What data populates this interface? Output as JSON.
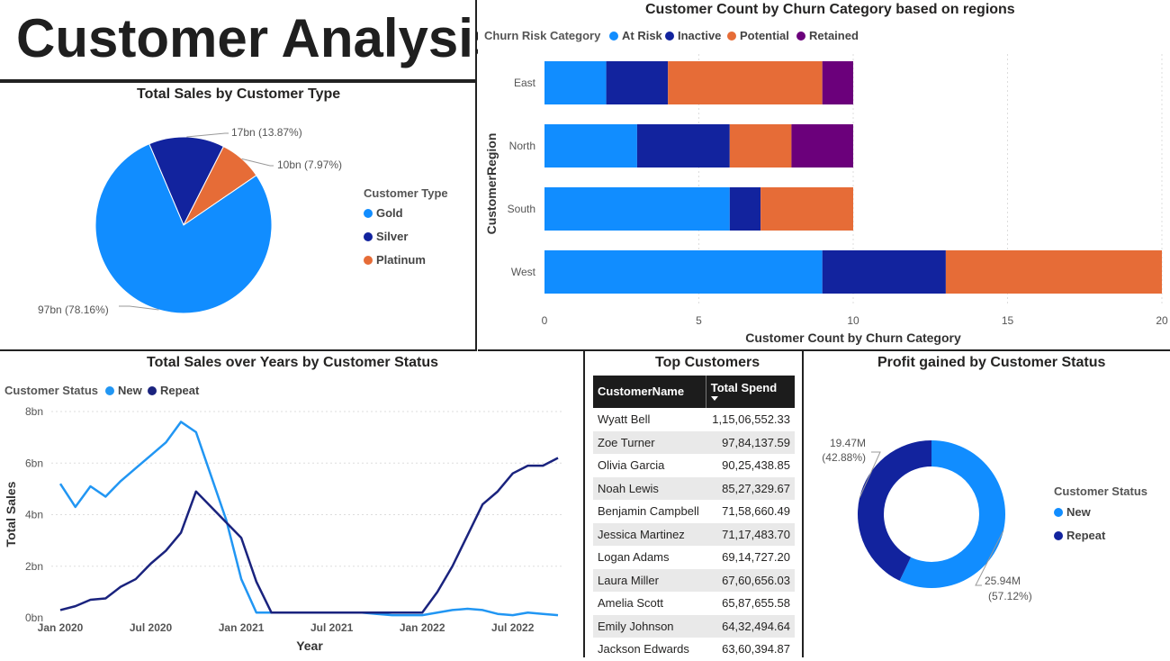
{
  "page_title": "Customer Analysis",
  "colors": {
    "gold": "#118DFF",
    "silver": "#12239E",
    "platinum": "#E66C37",
    "retained": "#6B007B",
    "new_line": "#2196F3",
    "repeat_line": "#1A237E"
  },
  "pie": {
    "title": "Total Sales by Customer Type",
    "legend_title": "Customer Type",
    "labels": [
      "97bn (78.16%)",
      "17bn (13.87%)",
      "10bn (7.97%)"
    ],
    "chart_data": {
      "type": "pie",
      "categories": [
        "Gold",
        "Silver",
        "Platinum"
      ],
      "values": [
        97,
        17,
        10
      ],
      "percent": [
        78.16,
        13.87,
        7.97
      ],
      "unit": "bn"
    }
  },
  "bar": {
    "title": "Customer Count by Churn Category based on regions",
    "legend_title": "Churn Risk Category",
    "xlabel": "Customer Count by Churn Category",
    "ylabel": "CustomerRegion",
    "ticks": [
      "0",
      "5",
      "10",
      "15",
      "20"
    ],
    "chart_data": {
      "type": "bar",
      "orientation": "horizontal",
      "stacked": true,
      "categories": [
        "East",
        "North",
        "South",
        "West"
      ],
      "series": [
        {
          "name": "At Risk",
          "values": [
            2,
            3,
            6,
            9
          ]
        },
        {
          "name": "Inactive",
          "values": [
            2,
            3,
            1,
            4
          ]
        },
        {
          "name": "Potential",
          "values": [
            5,
            2,
            3,
            7
          ]
        },
        {
          "name": "Retained",
          "values": [
            1,
            2,
            0,
            0
          ]
        }
      ],
      "xlim": [
        0,
        20
      ],
      "grid": true,
      "legend": "top-left"
    }
  },
  "line": {
    "title": "Total Sales over Years by Customer Status",
    "legend_title": "Customer Status",
    "xlabel": "Year",
    "ylabel": "Total Sales",
    "yticks": [
      "8bn",
      "6bn",
      "4bn",
      "2bn",
      "0bn"
    ],
    "xticks": [
      "Jan 2020",
      "Jul 2020",
      "Jan 2021",
      "Jul 2021",
      "Jan 2022",
      "Jul 2022"
    ],
    "chart_data": {
      "type": "line",
      "x": [
        "2020-01",
        "2020-02",
        "2020-03",
        "2020-04",
        "2020-05",
        "2020-06",
        "2020-07",
        "2020-08",
        "2020-09",
        "2020-10",
        "2020-11",
        "2020-12",
        "2021-01",
        "2021-02",
        "2021-03",
        "2021-04",
        "2021-05",
        "2021-06",
        "2021-07",
        "2021-08",
        "2021-09",
        "2021-10",
        "2021-11",
        "2021-12",
        "2022-01",
        "2022-02",
        "2022-03",
        "2022-04",
        "2022-05",
        "2022-06",
        "2022-07",
        "2022-08",
        "2022-09",
        "2022-10"
      ],
      "series": [
        {
          "name": "New",
          "values": [
            5.2,
            4.3,
            5.1,
            4.7,
            5.3,
            5.8,
            6.3,
            6.8,
            7.6,
            7.2,
            5.5,
            3.8,
            1.5,
            0.2,
            0.2,
            0.2,
            0.2,
            0.2,
            0.2,
            0.2,
            0.2,
            0.15,
            0.1,
            0.1,
            0.1,
            0.2,
            0.3,
            0.35,
            0.3,
            0.15,
            0.1,
            0.2,
            0.15,
            0.1
          ]
        },
        {
          "name": "Repeat",
          "values": [
            0.3,
            0.45,
            0.7,
            0.75,
            1.2,
            1.5,
            2.1,
            2.6,
            3.3,
            4.9,
            4.3,
            3.7,
            3.1,
            1.4,
            0.2,
            0.2,
            0.2,
            0.2,
            0.2,
            0.2,
            0.2,
            0.2,
            0.2,
            0.2,
            0.2,
            1.0,
            2.0,
            3.2,
            4.4,
            4.9,
            5.6,
            5.9,
            5.9,
            6.2
          ]
        }
      ],
      "ylim": [
        0,
        8
      ],
      "unit": "bn",
      "grid": true,
      "legend": "top-left"
    }
  },
  "table": {
    "title": "Top Customers",
    "headers": [
      "CustomerName",
      "Total Spend"
    ],
    "rows": [
      [
        "Wyatt Bell",
        "1,15,06,552.33"
      ],
      [
        "Zoe Turner",
        "97,84,137.59"
      ],
      [
        "Olivia Garcia",
        "90,25,438.85"
      ],
      [
        "Noah Lewis",
        "85,27,329.67"
      ],
      [
        "Benjamin Campbell",
        "71,58,660.49"
      ],
      [
        "Jessica Martinez",
        "71,17,483.70"
      ],
      [
        "Logan Adams",
        "69,14,727.20"
      ],
      [
        "Laura Miller",
        "67,60,656.03"
      ],
      [
        "Amelia Scott",
        "65,87,655.58"
      ],
      [
        "Emily Johnson",
        "64,32,494.64"
      ],
      [
        "Jackson Edwards",
        "63,60,394.87"
      ]
    ]
  },
  "donut": {
    "title": "Profit gained by Customer Status",
    "legend_title": "Customer Status",
    "labels": [
      [
        "25.94M",
        "(57.12%)"
      ],
      [
        "19.47M",
        "(42.88%)"
      ]
    ],
    "chart_data": {
      "type": "pie",
      "donut": true,
      "categories": [
        "New",
        "Repeat"
      ],
      "values": [
        25.94,
        19.47
      ],
      "percent": [
        57.12,
        42.88
      ],
      "unit": "M"
    }
  }
}
